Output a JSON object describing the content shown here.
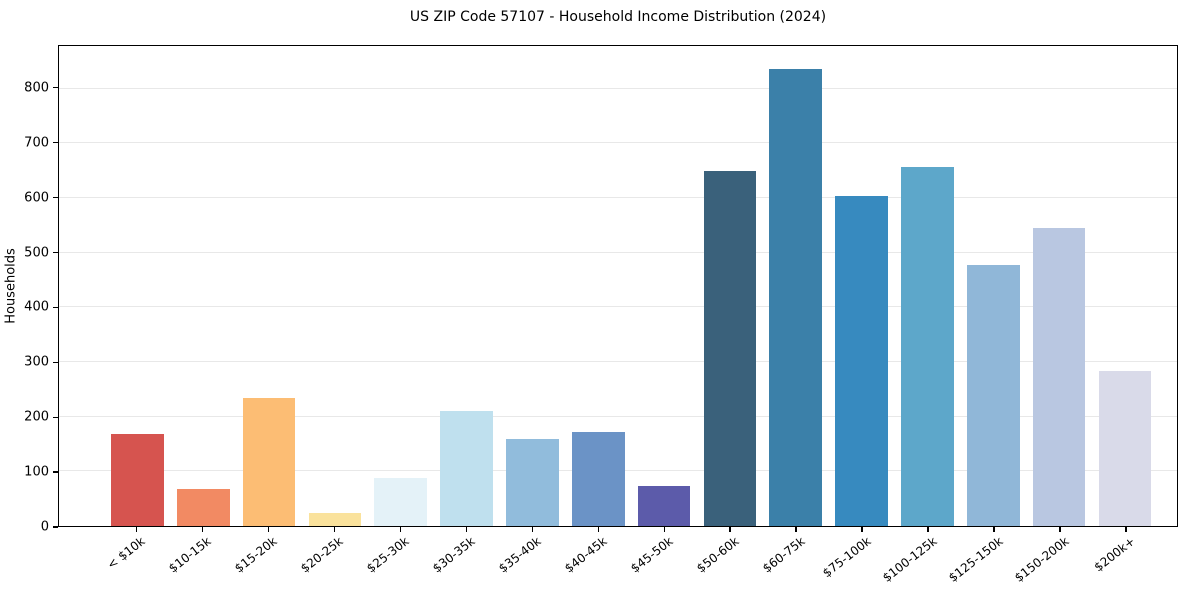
{
  "chart_data": {
    "type": "bar",
    "title": "US ZIP Code 57107 - Household Income Distribution (2024)",
    "xlabel": "",
    "ylabel": "Households",
    "categories": [
      "< $10k",
      "$10-15k",
      "$15-20k",
      "$20-25k",
      "$25-30k",
      "$30-35k",
      "$35-40k",
      "$40-45k",
      "$45-50k",
      "$50-60k",
      "$60-75k",
      "$75-100k",
      "$100-125k",
      "$125-150k",
      "$150-200k",
      "$200k+"
    ],
    "values": [
      168,
      68,
      234,
      23,
      88,
      210,
      159,
      172,
      73,
      650,
      836,
      603,
      657,
      477,
      545,
      283
    ],
    "bar_colors": [
      "#d6544f",
      "#f28a63",
      "#fcbd74",
      "#fae29c",
      "#e4f2f8",
      "#bfe0ee",
      "#91bcdc",
      "#6b93c6",
      "#5c5baa",
      "#3a617b",
      "#3b80a9",
      "#378abf",
      "#5da7ca",
      "#90b7d8",
      "#b9c7e1",
      "#d9dae9"
    ],
    "ylim": [
      0,
      878
    ],
    "yticks": [
      0,
      100,
      200,
      300,
      400,
      500,
      600,
      700,
      800
    ],
    "grid": "horizontal-only",
    "grid_color": "#e8e8e8",
    "axis_color": "#000000",
    "background_color": "#ffffff",
    "legend": "none",
    "x_tick_rotation_deg": 38
  }
}
